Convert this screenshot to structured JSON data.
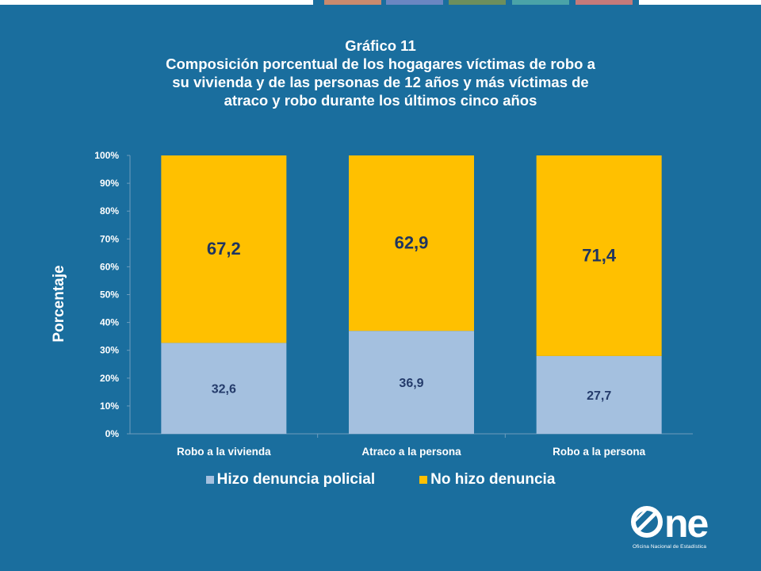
{
  "top_strip_colors": [
    "#ffffff",
    "#c98a6e",
    "#6a86c2",
    "#6c8f5d",
    "#4aa3a8",
    "#c47a7a",
    "#ffffff"
  ],
  "chart_data": {
    "type": "bar",
    "stacked": true,
    "percent_stacked": true,
    "title": "Gráfico 11",
    "subtitle": [
      "Composición porcentual de los hogagares víctimas de robo a",
      "su vivienda y de las personas de 12 años y más víctimas de",
      "atraco y robo durante los últimos cinco años"
    ],
    "ylabel": "Porcentaje",
    "xlabel": "",
    "ylim": [
      0,
      100
    ],
    "yticks": [
      "0%",
      "10%",
      "20%",
      "30%",
      "40%",
      "50%",
      "60%",
      "70%",
      "80%",
      "90%",
      "100%"
    ],
    "categories": [
      "Robo a la vivienda",
      "Atraco a la persona",
      "Robo a la persona"
    ],
    "series": [
      {
        "name": "Hizo denuncia policial",
        "color": "#a4c0df",
        "label_color": "#243b6b",
        "values": [
          32.6,
          36.9,
          27.7
        ],
        "labels": [
          "32,6",
          "36,9",
          "27,7"
        ]
      },
      {
        "name": "No hizo denuncia",
        "color": "#ffc000",
        "label_color": "#1f3560",
        "values": [
          67.2,
          62.9,
          71.4
        ],
        "labels": [
          "67,2",
          "62,9",
          "71,4"
        ]
      }
    ],
    "grid": false,
    "legend_position": "bottom"
  },
  "logo": {
    "brand": "ne",
    "subtitle": "Oficina Nacional de Estadística",
    "colors": {
      "mark": "#ffffff"
    }
  }
}
